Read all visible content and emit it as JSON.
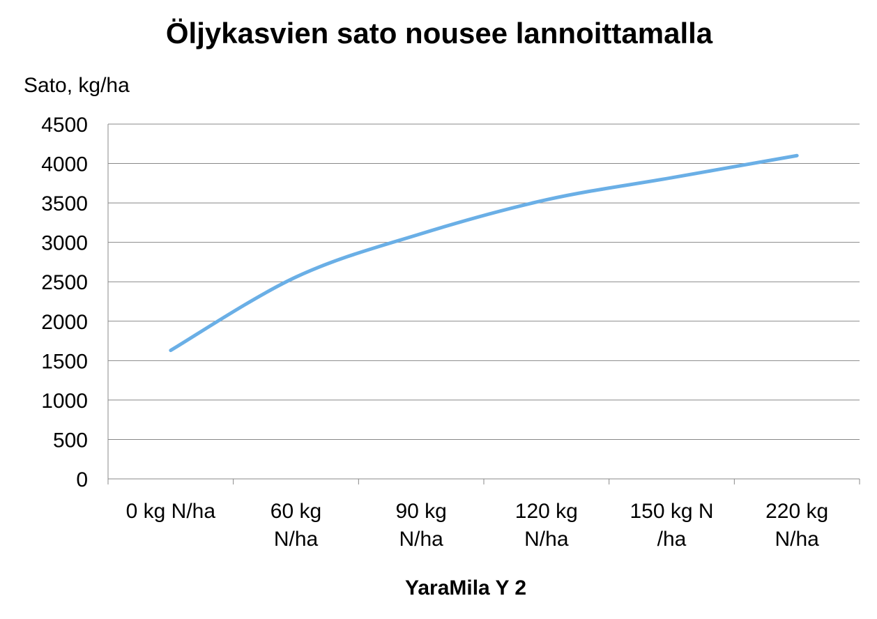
{
  "chart_data": {
    "type": "line",
    "title": "Öljykasvien sato nousee lannoittamalla",
    "y_label": "Sato, kg/ha",
    "x_label": "YaraMila  Y 2",
    "categories": [
      "0 kg N/ha",
      "60 kg\nN/ha",
      "90 kg\nN/ha",
      "120 kg\nN/ha",
      "150 kg N\n/ha",
      "220 kg\nN/ha"
    ],
    "series": [
      {
        "name": "Sato",
        "color": "#6aafe6",
        "values": [
          1630,
          2560,
          3110,
          3540,
          3820,
          4100
        ]
      }
    ],
    "ylim": [
      0,
      4500
    ],
    "yticks": [
      0,
      500,
      1000,
      1500,
      2000,
      2500,
      3000,
      3500,
      4000,
      4500
    ],
    "grid": true
  }
}
